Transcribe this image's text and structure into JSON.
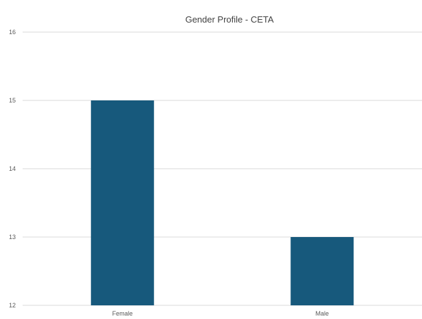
{
  "chart_data": {
    "type": "bar",
    "title": "Gender Profile - CETA",
    "xlabel": "",
    "ylabel": "",
    "categories": [
      "Female",
      "Male"
    ],
    "values": [
      15,
      13
    ],
    "ylim": [
      12,
      16
    ],
    "yticks": [
      12,
      13,
      14,
      15,
      16
    ],
    "grid": true,
    "legend": "none",
    "bar_color": "#17597c",
    "grid_color": "#d9d9d9"
  }
}
